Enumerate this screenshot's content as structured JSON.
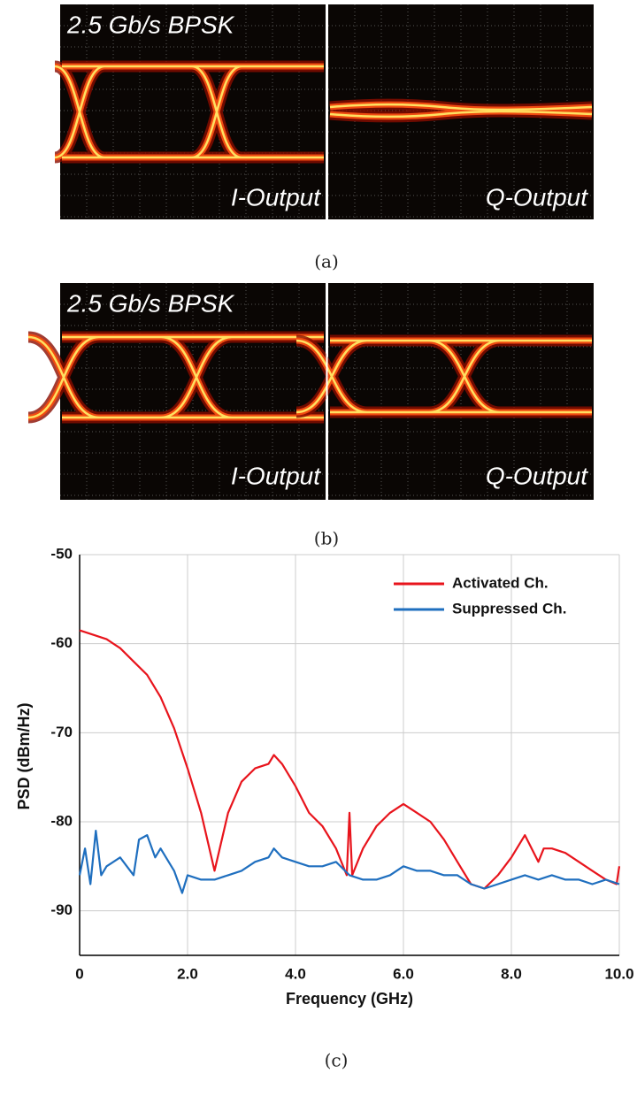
{
  "panels": [
    {
      "title": "2.5 Gb/s BPSK",
      "left_label": "I-Output",
      "right_label": "Q-Output",
      "caption": "(a)"
    },
    {
      "title": "2.5 Gb/s BPSK",
      "left_label": "I-Output",
      "right_label": "Q-Output",
      "caption": "(b)"
    }
  ],
  "chart_caption": "(c)",
  "chart_data": {
    "type": "line",
    "x_label": "Frequency (GHz)",
    "y_label": "PSD (dBm/Hz)",
    "xlim": [
      0,
      10
    ],
    "ylim": [
      -95,
      -50
    ],
    "xticks": [
      0,
      {
        "value": 2,
        "label": "2.0"
      },
      {
        "value": 4,
        "label": "4.0"
      },
      {
        "value": 6,
        "label": "6.0"
      },
      {
        "value": 8,
        "label": "8.0"
      },
      {
        "value": 10,
        "label": "10.0"
      }
    ],
    "yticks": [
      -50,
      -60,
      -70,
      -80,
      -90
    ],
    "grid": true,
    "legend": "upper right",
    "series": [
      {
        "name": "Activated Ch.",
        "color": "#e8141c",
        "x": [
          0,
          0.25,
          0.5,
          0.75,
          1.0,
          1.25,
          1.5,
          1.75,
          2.0,
          2.25,
          2.5,
          2.75,
          3.0,
          3.25,
          3.5,
          3.6,
          3.75,
          4.0,
          4.25,
          4.5,
          4.75,
          4.95,
          5.0,
          5.05,
          5.25,
          5.5,
          5.75,
          6.0,
          6.25,
          6.5,
          6.75,
          7.0,
          7.25,
          7.5,
          7.75,
          8.0,
          8.25,
          8.5,
          8.6,
          8.75,
          9.0,
          9.25,
          9.5,
          9.75,
          9.95,
          10.0
        ],
        "values": [
          -58.5,
          -59,
          -59.5,
          -60.5,
          -62,
          -63.5,
          -66,
          -69.5,
          -74,
          -79,
          -85.5,
          -79,
          -75.5,
          -74,
          -73.5,
          -72.5,
          -73.5,
          -76,
          -79,
          -80.5,
          -83,
          -86,
          -79,
          -86,
          -83,
          -80.5,
          -79,
          -78,
          -79,
          -80,
          -82,
          -84.5,
          -87,
          -87.5,
          -86,
          -84,
          -81.5,
          -84.5,
          -83,
          -83,
          -83.5,
          -84.5,
          -85.5,
          -86.5,
          -87,
          -85
        ]
      },
      {
        "name": "Suppressed Ch.",
        "color": "#1f6fbf",
        "x": [
          0,
          0.1,
          0.2,
          0.3,
          0.4,
          0.5,
          0.75,
          1.0,
          1.1,
          1.25,
          1.4,
          1.5,
          1.75,
          1.9,
          2.0,
          2.25,
          2.5,
          2.75,
          3.0,
          3.25,
          3.5,
          3.6,
          3.75,
          4.0,
          4.25,
          4.5,
          4.75,
          5.0,
          5.25,
          5.5,
          5.75,
          6.0,
          6.25,
          6.5,
          6.75,
          7.0,
          7.25,
          7.5,
          7.75,
          8.0,
          8.25,
          8.5,
          8.75,
          9.0,
          9.25,
          9.5,
          9.75,
          10.0
        ],
        "values": [
          -86,
          -83,
          -87,
          -81,
          -86,
          -85,
          -84,
          -86,
          -82,
          -81.5,
          -84,
          -83,
          -85.5,
          -88,
          -86,
          -86.5,
          -86.5,
          -86,
          -85.5,
          -84.5,
          -84,
          -83,
          -84,
          -84.5,
          -85,
          -85,
          -84.5,
          -86,
          -86.5,
          -86.5,
          -86,
          -85,
          -85.5,
          -85.5,
          -86,
          -86,
          -87,
          -87.5,
          -87,
          -86.5,
          -86,
          -86.5,
          -86,
          -86.5,
          -86.5,
          -87,
          -86.5,
          -87
        ]
      }
    ]
  }
}
